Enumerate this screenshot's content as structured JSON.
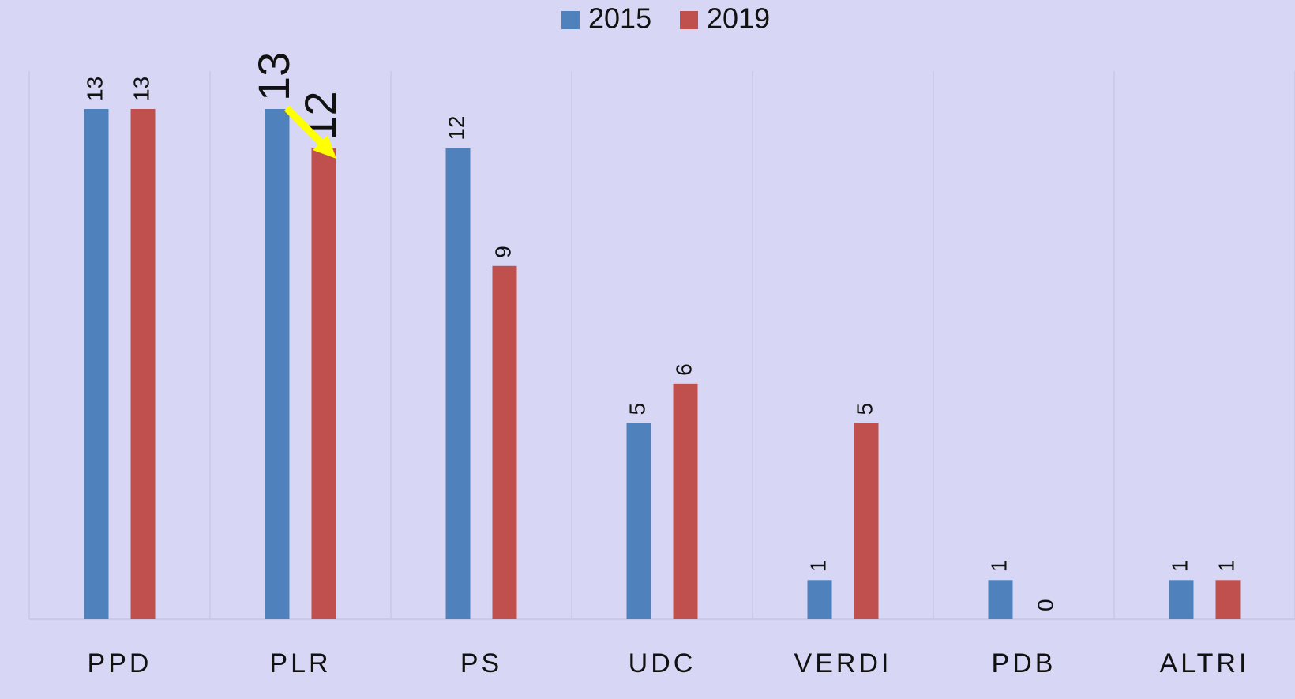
{
  "chart_data": {
    "type": "bar",
    "categories": [
      "PPD",
      "PLR",
      "PS",
      "UDC",
      "VERDI",
      "PDB",
      "ALTRI"
    ],
    "series": [
      {
        "name": "2015",
        "color": "#4f81bd",
        "values": [
          13,
          13,
          12,
          5,
          1,
          1,
          1
        ]
      },
      {
        "name": "2019",
        "color": "#c0504d",
        "values": [
          13,
          12,
          9,
          6,
          5,
          0,
          1
        ]
      }
    ],
    "grid": true,
    "legend": "top"
  }
}
